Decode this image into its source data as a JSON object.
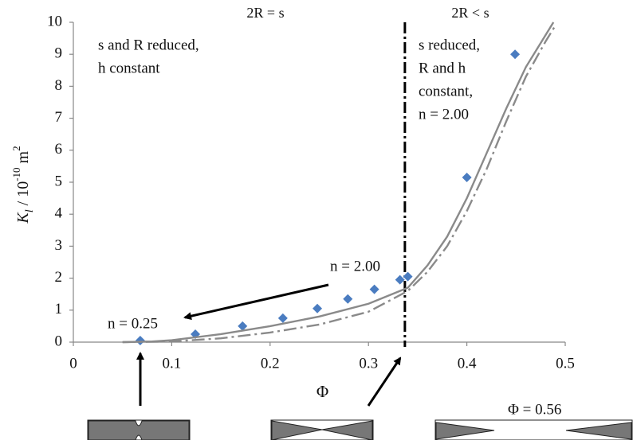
{
  "chart_data": {
    "type": "scatter",
    "xlabel": "Φ",
    "ylabel": [
      "K",
      "l",
      " / 10",
      "-10",
      " m",
      "2"
    ],
    "xlim": [
      0,
      0.5
    ],
    "ylim": [
      0,
      10
    ],
    "xticks": [
      0,
      0.1,
      0.2,
      0.3,
      0.4,
      0.5
    ],
    "yticks": [
      0,
      1,
      2,
      3,
      4,
      5,
      6,
      7,
      8,
      9,
      10
    ],
    "grid": false,
    "series": [
      {
        "kind": "points",
        "color": "#4a7cc0",
        "x": [
          0.068,
          0.124,
          0.172,
          0.213,
          0.248,
          0.279,
          0.306,
          0.332,
          0.34,
          0.4,
          0.449
        ],
        "values": [
          0.05,
          0.25,
          0.5,
          0.75,
          1.05,
          1.35,
          1.65,
          1.95,
          2.05,
          5.15,
          9.0
        ]
      },
      {
        "kind": "solid",
        "color": "#8a8a8a",
        "x": [
          0.05,
          0.08,
          0.1,
          0.15,
          0.2,
          0.25,
          0.3,
          0.34,
          0.36,
          0.38,
          0.4,
          0.42,
          0.44,
          0.46,
          0.48,
          0.488
        ],
        "values": [
          0,
          0.02,
          0.06,
          0.25,
          0.5,
          0.8,
          1.2,
          1.7,
          2.4,
          3.3,
          4.5,
          5.9,
          7.3,
          8.6,
          9.6,
          10
        ]
      },
      {
        "kind": "dashdot",
        "color": "#8a8a8a",
        "x": [
          0.05,
          0.1,
          0.15,
          0.2,
          0.25,
          0.3,
          0.34,
          0.36,
          0.38,
          0.4,
          0.42,
          0.44,
          0.46,
          0.48,
          0.49
        ],
        "values": [
          0,
          0.02,
          0.12,
          0.3,
          0.55,
          0.95,
          1.6,
          2.2,
          3.0,
          4.1,
          5.4,
          6.9,
          8.3,
          9.4,
          9.9
        ]
      }
    ],
    "reference_line": {
      "x": 0.337,
      "color": "#000000"
    },
    "region_labels": [
      "2R = s",
      "2R < s"
    ],
    "annotations": [
      [
        "s and R reduced,",
        "h constant"
      ],
      [
        "s reduced,",
        "R and h",
        "constant,",
        "n = 2.00"
      ],
      [
        "n = 2.00"
      ],
      [
        "n = 0.25"
      ],
      [
        "Φ = 0.56"
      ]
    ]
  }
}
